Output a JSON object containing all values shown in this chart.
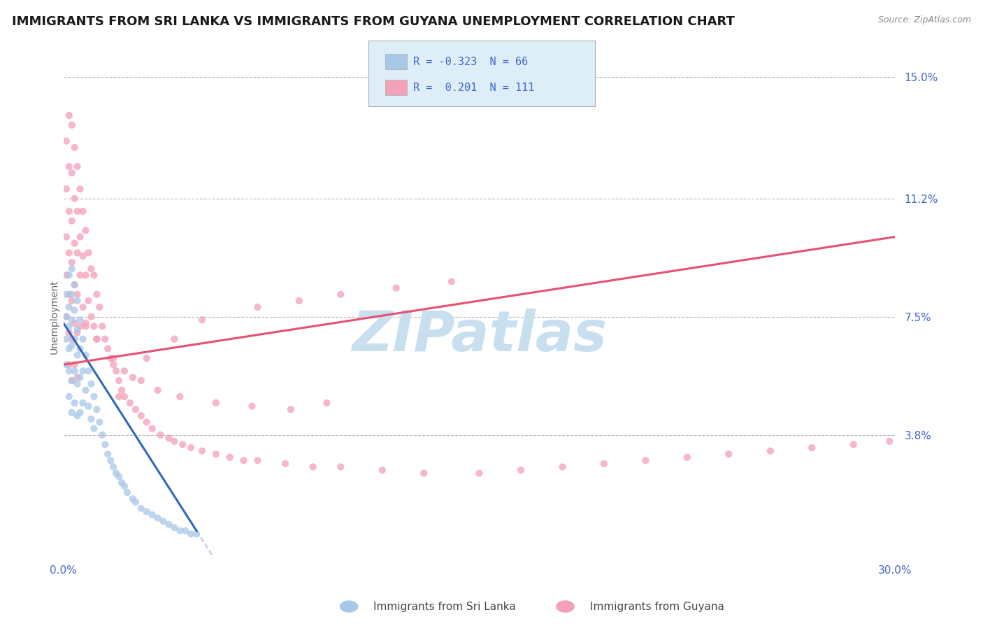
{
  "title": "IMMIGRANTS FROM SRI LANKA VS IMMIGRANTS FROM GUYANA UNEMPLOYMENT CORRELATION CHART",
  "source": "Source: ZipAtlas.com",
  "ylabel": "Unemployment",
  "xlim": [
    0,
    0.3
  ],
  "ylim": [
    0,
    0.15
  ],
  "ytick_values": [
    0.038,
    0.075,
    0.112,
    0.15
  ],
  "ytick_labels": [
    "3.8%",
    "7.5%",
    "11.2%",
    "15.0%"
  ],
  "series1_label": "Immigrants from Sri Lanka",
  "series2_label": "Immigrants from Guyana",
  "series1_color": "#a8c8e8",
  "series2_color": "#f4a0b8",
  "trendline1_color": "#3366bb",
  "trendline2_color": "#e85070",
  "background_color": "#ffffff",
  "legend_box_color": "#deeef8",
  "legend_border_color": "#aaaaaa",
  "title_color": "#1a1a1a",
  "source_color": "#888888",
  "tick_color": "#4466cc",
  "ylabel_color": "#666666",
  "watermark_color": "#c8dff0",
  "title_fontsize": 13,
  "tick_fontsize": 11,
  "axis_label_fontsize": 10,
  "legend_fontsize": 11,
  "sri_lanka_x": [
    0.001,
    0.001,
    0.001,
    0.001,
    0.002,
    0.002,
    0.002,
    0.002,
    0.002,
    0.002,
    0.003,
    0.003,
    0.003,
    0.003,
    0.003,
    0.003,
    0.004,
    0.004,
    0.004,
    0.004,
    0.004,
    0.005,
    0.005,
    0.005,
    0.005,
    0.005,
    0.006,
    0.006,
    0.006,
    0.006,
    0.007,
    0.007,
    0.007,
    0.008,
    0.008,
    0.009,
    0.009,
    0.01,
    0.01,
    0.011,
    0.011,
    0.012,
    0.013,
    0.014,
    0.015,
    0.016,
    0.017,
    0.018,
    0.019,
    0.02,
    0.021,
    0.022,
    0.023,
    0.025,
    0.026,
    0.028,
    0.03,
    0.032,
    0.034,
    0.036,
    0.038,
    0.04,
    0.042,
    0.044,
    0.046,
    0.048
  ],
  "sri_lanka_y": [
    0.082,
    0.075,
    0.068,
    0.06,
    0.088,
    0.078,
    0.072,
    0.065,
    0.058,
    0.05,
    0.09,
    0.082,
    0.074,
    0.066,
    0.055,
    0.045,
    0.085,
    0.077,
    0.068,
    0.058,
    0.048,
    0.08,
    0.071,
    0.063,
    0.054,
    0.044,
    0.074,
    0.065,
    0.056,
    0.045,
    0.068,
    0.058,
    0.048,
    0.063,
    0.052,
    0.058,
    0.047,
    0.054,
    0.043,
    0.05,
    0.04,
    0.046,
    0.042,
    0.038,
    0.035,
    0.032,
    0.03,
    0.028,
    0.026,
    0.025,
    0.023,
    0.022,
    0.02,
    0.018,
    0.017,
    0.015,
    0.014,
    0.013,
    0.012,
    0.011,
    0.01,
    0.009,
    0.008,
    0.008,
    0.007,
    0.007
  ],
  "guyana_x": [
    0.001,
    0.001,
    0.001,
    0.001,
    0.001,
    0.002,
    0.002,
    0.002,
    0.002,
    0.002,
    0.002,
    0.002,
    0.003,
    0.003,
    0.003,
    0.003,
    0.003,
    0.003,
    0.003,
    0.004,
    0.004,
    0.004,
    0.004,
    0.004,
    0.004,
    0.005,
    0.005,
    0.005,
    0.005,
    0.005,
    0.005,
    0.006,
    0.006,
    0.006,
    0.006,
    0.007,
    0.007,
    0.007,
    0.008,
    0.008,
    0.008,
    0.009,
    0.009,
    0.01,
    0.01,
    0.011,
    0.011,
    0.012,
    0.012,
    0.013,
    0.014,
    0.015,
    0.016,
    0.017,
    0.018,
    0.019,
    0.02,
    0.021,
    0.022,
    0.024,
    0.026,
    0.028,
    0.03,
    0.032,
    0.035,
    0.038,
    0.04,
    0.043,
    0.046,
    0.05,
    0.055,
    0.06,
    0.065,
    0.07,
    0.08,
    0.09,
    0.1,
    0.115,
    0.13,
    0.15,
    0.165,
    0.18,
    0.195,
    0.21,
    0.225,
    0.24,
    0.255,
    0.27,
    0.285,
    0.298,
    0.02,
    0.025,
    0.03,
    0.04,
    0.05,
    0.07,
    0.085,
    0.1,
    0.12,
    0.14,
    0.008,
    0.012,
    0.018,
    0.022,
    0.028,
    0.034,
    0.042,
    0.055,
    0.068,
    0.082,
    0.095
  ],
  "guyana_y": [
    0.13,
    0.115,
    0.1,
    0.088,
    0.075,
    0.138,
    0.122,
    0.108,
    0.095,
    0.082,
    0.07,
    0.06,
    0.135,
    0.12,
    0.105,
    0.092,
    0.08,
    0.068,
    0.055,
    0.128,
    0.112,
    0.098,
    0.085,
    0.073,
    0.06,
    0.122,
    0.108,
    0.095,
    0.082,
    0.07,
    0.056,
    0.115,
    0.1,
    0.088,
    0.072,
    0.108,
    0.094,
    0.078,
    0.102,
    0.088,
    0.073,
    0.095,
    0.08,
    0.09,
    0.075,
    0.088,
    0.072,
    0.082,
    0.068,
    0.078,
    0.072,
    0.068,
    0.065,
    0.062,
    0.06,
    0.058,
    0.055,
    0.052,
    0.05,
    0.048,
    0.046,
    0.044,
    0.042,
    0.04,
    0.038,
    0.037,
    0.036,
    0.035,
    0.034,
    0.033,
    0.032,
    0.031,
    0.03,
    0.03,
    0.029,
    0.028,
    0.028,
    0.027,
    0.026,
    0.026,
    0.027,
    0.028,
    0.029,
    0.03,
    0.031,
    0.032,
    0.033,
    0.034,
    0.035,
    0.036,
    0.05,
    0.056,
    0.062,
    0.068,
    0.074,
    0.078,
    0.08,
    0.082,
    0.084,
    0.086,
    0.072,
    0.068,
    0.062,
    0.058,
    0.055,
    0.052,
    0.05,
    0.048,
    0.047,
    0.046,
    0.048
  ],
  "trendline1_x0": 0.0,
  "trendline1_x1": 0.048,
  "trendline1_y0": 0.073,
  "trendline1_y1": 0.008,
  "trendline1_dash_x0": 0.048,
  "trendline1_dash_x1": 0.3,
  "trendline2_x0": 0.0,
  "trendline2_x1": 0.3,
  "trendline2_y0": 0.06,
  "trendline2_y1": 0.1
}
